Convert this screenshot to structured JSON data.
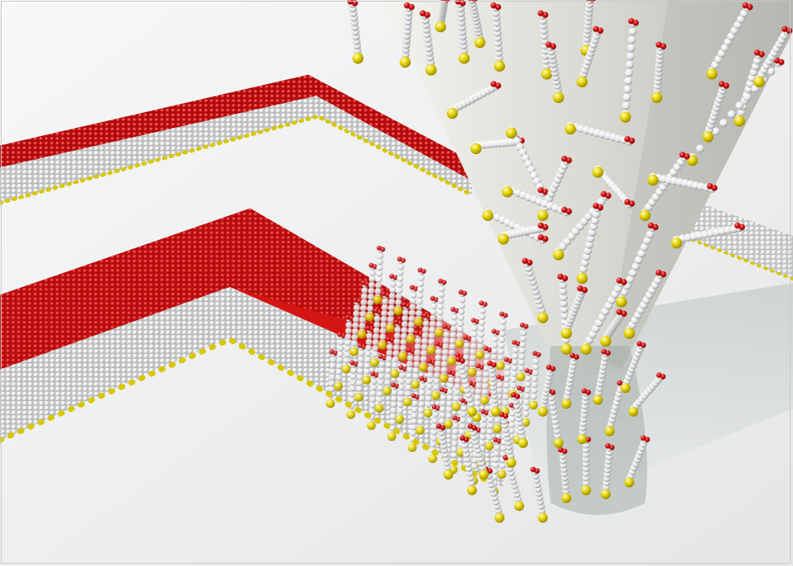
{
  "image": {
    "subject": "",
    "colors": {
      "substrate_light": "#f4f5f5",
      "substrate_shadow": "#c8ccd0",
      "head_red": "#d51414",
      "chain_white": "#f2f2f2",
      "chain_grey": "#a8aaac",
      "anchor_yellow": "#e3d100",
      "tip_body": "#d8d9d2",
      "tip_shadow": "#8f9693"
    }
  }
}
